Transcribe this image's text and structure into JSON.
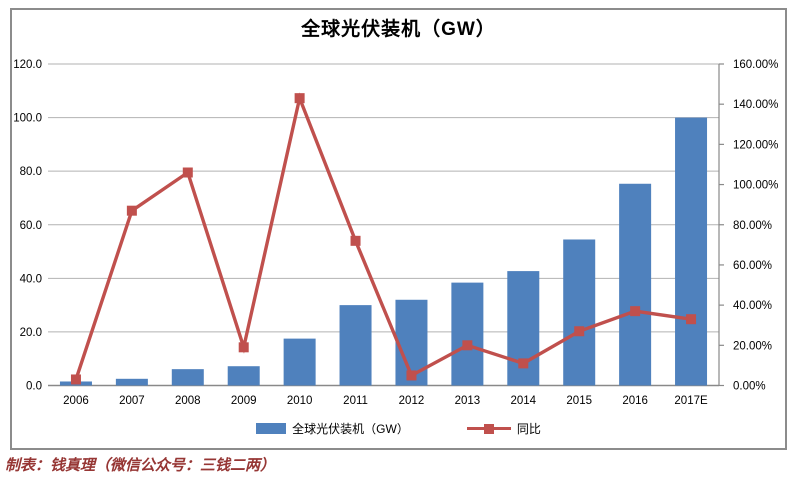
{
  "figure": {
    "caption": "制表：钱真理（微信公众号：三钱二两）"
  },
  "colors": {
    "bar": "#4f81bd",
    "line": "#c0504d",
    "grid": "#b2b2b2",
    "axis": "#898989",
    "frame_border": "#8c8c8c",
    "caption_text": "#963634",
    "label_text": "#000000"
  },
  "chart_data": {
    "type": "combo",
    "title": "全球光伏装机（GW）",
    "categories": [
      "2006",
      "2007",
      "2008",
      "2009",
      "2010",
      "2011",
      "2012",
      "2013",
      "2014",
      "2015",
      "2016",
      "2017E"
    ],
    "series": [
      {
        "name": "全球光伏装机（GW）",
        "type": "bar",
        "axis": "left",
        "values": [
          1.5,
          2.5,
          6.1,
          7.2,
          17.5,
          30.0,
          32.0,
          38.4,
          42.7,
          54.5,
          75.3,
          100.0
        ]
      },
      {
        "name": "同比",
        "type": "line",
        "axis": "right",
        "values_percent": [
          3,
          87,
          106,
          19,
          143,
          72,
          5,
          20,
          11,
          27,
          37,
          33
        ]
      }
    ],
    "left_axis": {
      "min": 0,
      "max": 120,
      "step": 20,
      "tick_labels": [
        "0.0",
        "20.0",
        "40.0",
        "60.0",
        "80.0",
        "100.0",
        "120.0"
      ]
    },
    "right_axis": {
      "min": 0,
      "max": 160,
      "step": 20,
      "tick_labels": [
        "0.00%",
        "20.00%",
        "40.00%",
        "60.00%",
        "80.00%",
        "100.00%",
        "120.00%",
        "140.00%",
        "160.00%"
      ]
    },
    "grid": "horizontal",
    "legend_position": "bottom"
  }
}
